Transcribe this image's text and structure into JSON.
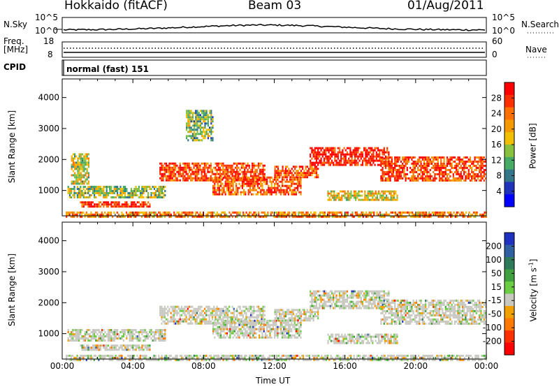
{
  "header": {
    "station": "Hokkaido (fitACF)",
    "beam": "Beam 03",
    "date": "01/Aug/2011"
  },
  "panels": {
    "nsky": {
      "label": "N.Sky",
      "tick_top": "10^5",
      "tick_bottom": "10^0",
      "right_label": "N.Search",
      "right_tick_top": "10^5",
      "right_tick_bottom": "10^0"
    },
    "freq": {
      "label_top": "Freq.",
      "label_bottom": "[MHz]",
      "tick_top": "18",
      "tick_bottom": "8",
      "right_label": "Nave",
      "right_tick_top": "60",
      "right_tick_bottom": "0"
    },
    "cpid": {
      "label": "CPID",
      "mode": "normal (fast) 151"
    }
  },
  "chart_data": [
    {
      "type": "heatmap",
      "name": "Power",
      "ylabel": "Slant Range [km]",
      "xlabel": "",
      "y_ticks": [
        "1000",
        "2000",
        "3000",
        "4000"
      ],
      "x_ticks": [
        "00:00",
        "04:00",
        "08:00",
        "12:00",
        "16:00",
        "20:00",
        "00:00"
      ],
      "colorbar": {
        "label": "Power [dB]",
        "ticks": [
          "4",
          "8",
          "12",
          "16",
          "20",
          "24",
          "28"
        ],
        "colors": [
          "#0000ff",
          "#2233bb",
          "#337788",
          "#44aa66",
          "#88c040",
          "#f0c000",
          "#f49a00",
          "#ff7000",
          "#ff3000",
          "#ff0000"
        ]
      },
      "xlim": [
        0,
        24
      ],
      "ylim": [
        180,
        4600
      ],
      "echo_bands": [
        {
          "t": [
            0.2,
            24
          ],
          "r": [
            180,
            320
          ],
          "level": 0.7
        },
        {
          "t": [
            0.3,
            5.8
          ],
          "r": [
            800,
            1150
          ],
          "level": 0.45
        },
        {
          "t": [
            1.0,
            5.0
          ],
          "r": [
            450,
            650
          ],
          "level": 0.9
        },
        {
          "t": [
            5.5,
            11.5
          ],
          "r": [
            1300,
            1900
          ],
          "level": 0.85
        },
        {
          "t": [
            8.5,
            13.5
          ],
          "r": [
            850,
            1450
          ],
          "level": 0.8
        },
        {
          "t": [
            12.0,
            14.5
          ],
          "r": [
            1400,
            1800
          ],
          "level": 0.8
        },
        {
          "t": [
            14.0,
            18.5
          ],
          "r": [
            1800,
            2400
          ],
          "level": 0.95
        },
        {
          "t": [
            18.0,
            24.0
          ],
          "r": [
            1350,
            2100
          ],
          "level": 0.85
        },
        {
          "t": [
            15.0,
            19.0
          ],
          "r": [
            700,
            1000
          ],
          "level": 0.55
        },
        {
          "t": [
            7.0,
            8.5
          ],
          "r": [
            2600,
            3600
          ],
          "level": 0.4
        },
        {
          "t": [
            0.5,
            1.5
          ],
          "r": [
            1200,
            2200
          ],
          "level": 0.5
        }
      ]
    },
    {
      "type": "heatmap",
      "name": "Velocity",
      "ylabel": "Slant Range [km]",
      "xlabel": "Time UT",
      "y_ticks": [
        "1000",
        "2000",
        "3000",
        "4000"
      ],
      "x_ticks": [
        "00:00",
        "04:00",
        "08:00",
        "12:00",
        "16:00",
        "20:00",
        "00:00"
      ],
      "colorbar": {
        "label": "Velocity [m s^-1]",
        "ticks": [
          "200",
          "100",
          "50",
          "15",
          "-15",
          "-50",
          "-100",
          "-200"
        ],
        "colors": [
          "#2030c0",
          "#3060a0",
          "#2f7a5a",
          "#40a040",
          "#6ccc44",
          "#c8c8c0",
          "#f0a000",
          "#ff7800",
          "#ff3000",
          "#ff0000"
        ]
      },
      "xlim": [
        0,
        24
      ],
      "ylim": [
        180,
        4600
      ],
      "echo_bands": [
        {
          "t": [
            0.2,
            24
          ],
          "r": [
            180,
            320
          ],
          "level": 0.5
        },
        {
          "t": [
            0.3,
            5.8
          ],
          "r": [
            800,
            1150
          ],
          "level": 0.5
        },
        {
          "t": [
            1.0,
            5.0
          ],
          "r": [
            450,
            650
          ],
          "level": 0.5
        },
        {
          "t": [
            5.5,
            11.5
          ],
          "r": [
            1300,
            1900
          ],
          "level": 0.5
        },
        {
          "t": [
            8.5,
            13.5
          ],
          "r": [
            850,
            1450
          ],
          "level": 0.5
        },
        {
          "t": [
            12.0,
            14.5
          ],
          "r": [
            1400,
            1800
          ],
          "level": 0.5
        },
        {
          "t": [
            14.0,
            18.5
          ],
          "r": [
            1800,
            2400
          ],
          "level": 0.5
        },
        {
          "t": [
            18.0,
            24.0
          ],
          "r": [
            1350,
            2100
          ],
          "level": 0.5
        },
        {
          "t": [
            15.0,
            19.0
          ],
          "r": [
            700,
            1000
          ],
          "level": 0.5
        }
      ]
    }
  ]
}
